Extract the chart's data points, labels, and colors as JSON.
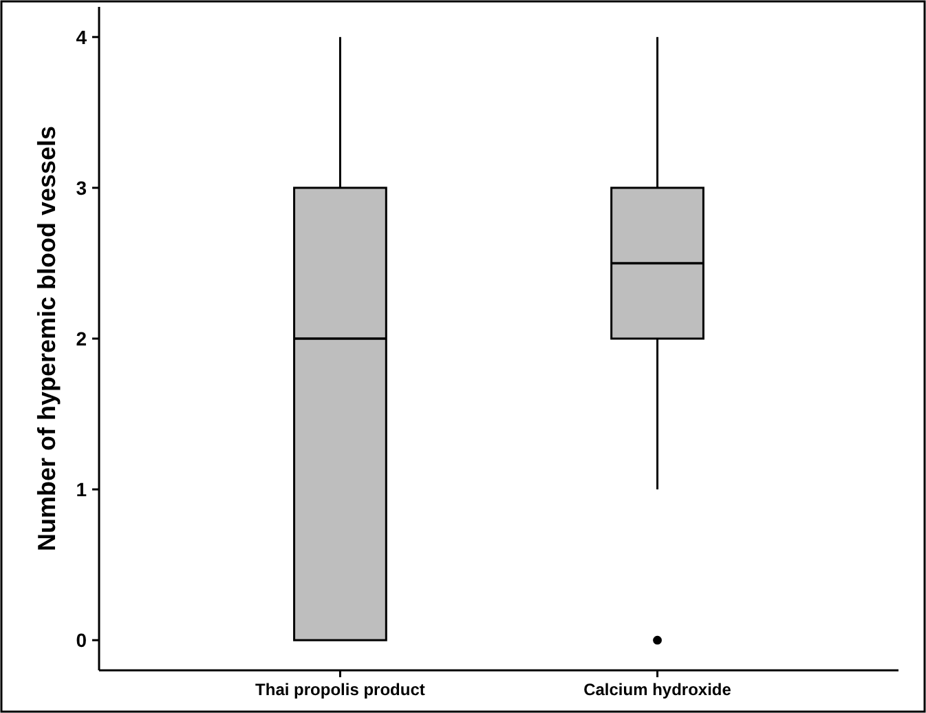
{
  "chart_data": {
    "type": "box",
    "ylabel": "Number of hyperemic blood vessels",
    "categories": [
      "Thai propolis product",
      "Calcium hydroxide"
    ],
    "boxes": [
      {
        "low": 0,
        "q1": 0,
        "median": 2,
        "q3": 3,
        "high": 4
      },
      {
        "low": 1,
        "q1": 2,
        "median": 2.5,
        "q3": 3,
        "high": 4,
        "outliers": [
          0
        ]
      }
    ],
    "color": "#bebebe",
    "ylim": [
      -0.2,
      4.2
    ],
    "yticks": [
      0,
      1,
      2,
      3,
      4
    ],
    "grid": false
  }
}
